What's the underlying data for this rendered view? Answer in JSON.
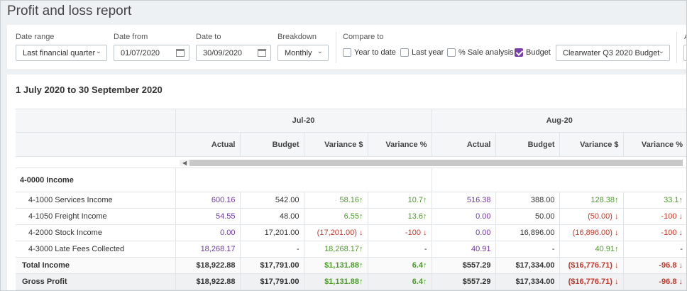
{
  "title": "Profit and loss report",
  "filters": {
    "date_range_label": "Date range",
    "date_range_value": "Last financial quarter",
    "date_from_label": "Date from",
    "date_from_value": "01/07/2020",
    "date_to_label": "Date to",
    "date_to_value": "30/09/2020",
    "breakdown_label": "Breakdown",
    "breakdown_value": "Monthly",
    "compare_label": "Compare to",
    "compare": {
      "ytd": "Year to date",
      "last_year": "Last year",
      "sale_analysis": "% Sale analysis",
      "budget": "Budget"
    },
    "budget_select": "Clearwater Q3 2020 Budget",
    "overflow_label": "A"
  },
  "report": {
    "range": "1 July 2020 to 30 September 2020",
    "months": [
      "Jul-20",
      "Aug-20"
    ],
    "columns": [
      "Actual",
      "Budget",
      "Variance $",
      "Variance %"
    ],
    "section": "4-0000 Income",
    "rows": [
      {
        "label": "4-1000 Services Income",
        "jul": [
          "600.16",
          "542.00",
          "58.16",
          "10.7"
        ],
        "aug": [
          "516.38",
          "388.00",
          "128.38",
          "33.1"
        ]
      },
      {
        "label": "4-1050 Freight Income",
        "jul": [
          "54.55",
          "48.00",
          "6.55",
          "13.6"
        ],
        "aug": [
          "0.00",
          "50.00",
          "(50.00)",
          "-100"
        ]
      },
      {
        "label": "4-2000 Stock Income",
        "jul": [
          "0.00",
          "17,201.00",
          "(17,201.00)",
          "-100"
        ],
        "aug": [
          "0.00",
          "16,896.00",
          "(16,896.00)",
          "-100"
        ]
      },
      {
        "label": "4-3000 Late Fees Collected",
        "jul": [
          "18,268.17",
          "-",
          "18,268.17",
          "-"
        ],
        "aug": [
          "40.91",
          "-",
          "40.91",
          "-"
        ]
      },
      {
        "label": "Total Income",
        "jul": [
          "$18,922.88",
          "$17,791.00",
          "$1,131.88",
          "6.4"
        ],
        "aug": [
          "$557.29",
          "$17,334.00",
          "($16,776.71)",
          "-96.8"
        ]
      },
      {
        "label": "Gross Profit",
        "jul": [
          "$18,922.88",
          "$17,791.00",
          "$1,131.88",
          "6.4"
        ],
        "aug": [
          "$557.29",
          "$17,334.00",
          "($16,776.71)",
          "-96.8"
        ]
      }
    ],
    "up_arrow": "↑",
    "down_arrow": "↓"
  },
  "colors": {
    "purple": "#6e3aa0",
    "green": "#4c9a2a",
    "red": "#c0392b",
    "checkbox_on": "#7b3fa7"
  }
}
